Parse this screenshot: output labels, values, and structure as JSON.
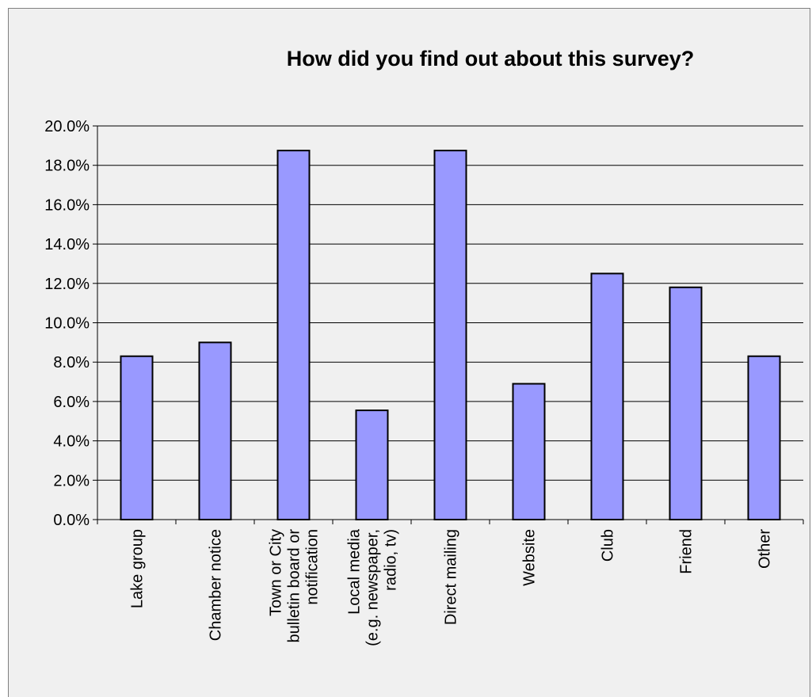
{
  "chart_data": {
    "type": "bar",
    "title": "How did you find out about this survey?",
    "xlabel": "",
    "ylabel": "",
    "ylim": [
      0,
      20
    ],
    "y_tick_step": 2,
    "y_tick_format": "percent-1dp",
    "grid": true,
    "legend": "none",
    "categories": [
      [
        "Lake group"
      ],
      [
        "Chamber notice"
      ],
      [
        "Town or City",
        "bulletin board or",
        "notification"
      ],
      [
        "Local media",
        "(e.g. newspaper,",
        "radio, tv)"
      ],
      [
        "Direct mailing"
      ],
      [
        "Website"
      ],
      [
        "Club"
      ],
      [
        "Friend"
      ],
      [
        "Other"
      ]
    ],
    "values": [
      8.3,
      9.0,
      18.75,
      5.55,
      18.75,
      6.9,
      12.5,
      11.8,
      8.3
    ],
    "colors": {
      "bar_fill": "#9999ff",
      "bar_stroke": "#000000",
      "background": "#f0f0f0",
      "gridline": "#000000"
    }
  }
}
